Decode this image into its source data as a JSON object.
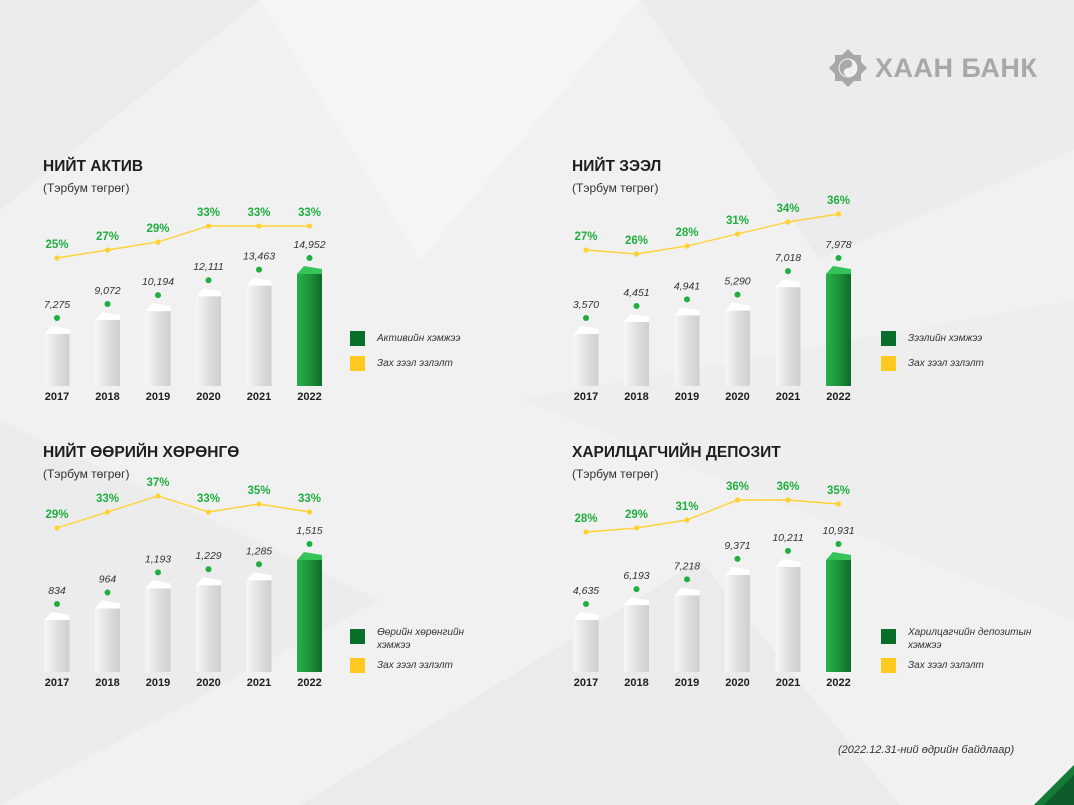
{
  "brand": {
    "name": "ХААН БАНК",
    "logo_color": "#a8a8a8"
  },
  "colors": {
    "accent_green": "#1fae3f",
    "line_yellow": "#ffd232",
    "bar_green": "#1d9a3a",
    "bar_gray": "#e8e8e8",
    "legend_green": "#0a6e2b",
    "legend_yellow": "#ffc91f"
  },
  "footer": "(2022.12.31-ний өдрийн байдлаар)",
  "chart_data": [
    {
      "type": "bar",
      "title": "НИЙТ АКТИВ",
      "subtitle": "(Тэрбум төгрөг)",
      "categories": [
        "2017",
        "2018",
        "2019",
        "2020",
        "2021",
        "2022"
      ],
      "series": [
        {
          "name": "Активийн хэмжээ",
          "values": [
            7275,
            9072,
            10194,
            12111,
            13463,
            14952
          ],
          "labels": [
            "7,275",
            "9,072",
            "10,194",
            "12,111",
            "13,463",
            "14,952"
          ]
        },
        {
          "name": "Зах зээл эзлэлт",
          "values": [
            25,
            27,
            29,
            33,
            33,
            33
          ],
          "labels": [
            "25%",
            "27%",
            "29%",
            "33%",
            "33%",
            "33%"
          ]
        }
      ],
      "legend": [
        "Активийн хэмжээ",
        "Зах зээл эзлэлт"
      ],
      "legend_position": "right"
    },
    {
      "type": "bar",
      "title": "НИЙТ ЗЭЭЛ",
      "subtitle": "(Тэрбум төгрөг)",
      "categories": [
        "2017",
        "2018",
        "2019",
        "2020",
        "2021",
        "2022"
      ],
      "series": [
        {
          "name": "Зээлийн хэмжээ",
          "values": [
            3570,
            4451,
            4941,
            5290,
            7018,
            7978
          ],
          "labels": [
            "3,570",
            "4,451",
            "4,941",
            "5,290",
            "7,018",
            "7,978"
          ]
        },
        {
          "name": "Зах зээл эзлэлт",
          "values": [
            27,
            26,
            28,
            31,
            34,
            36
          ],
          "labels": [
            "27%",
            "26%",
            "28%",
            "31%",
            "34%",
            "36%"
          ]
        }
      ],
      "legend": [
        "Зээлийн хэмжээ",
        "Зах зээл эзлэлт"
      ],
      "legend_position": "right"
    },
    {
      "type": "bar",
      "title": "НИЙТ ӨӨРИЙН ХӨРӨНГӨ",
      "subtitle": "(Тэрбум төгрөг)",
      "categories": [
        "2017",
        "2018",
        "2019",
        "2020",
        "2021",
        "2022"
      ],
      "series": [
        {
          "name": "Өөрийн хөрөнгийн хэмжээ",
          "values": [
            834,
            964,
            1193,
            1229,
            1285,
            1515
          ],
          "labels": [
            "834",
            "964",
            "1,193",
            "1,229",
            "1,285",
            "1,515"
          ]
        },
        {
          "name": "Зах зээл эзлэлт",
          "values": [
            29,
            33,
            37,
            33,
            35,
            33
          ],
          "labels": [
            "29%",
            "33%",
            "37%",
            "33%",
            "35%",
            "33%"
          ]
        }
      ],
      "legend": [
        "Өөрийн хөрөнгийн хэмжээ",
        "Зах зээл эзлэлт"
      ],
      "legend_position": "right"
    },
    {
      "type": "bar",
      "title": "ХАРИЛЦАГЧИЙН ДЕПОЗИТ",
      "subtitle": "(Тэрбум төгрөг)",
      "categories": [
        "2017",
        "2018",
        "2019",
        "2020",
        "2021",
        "2022"
      ],
      "series": [
        {
          "name": "Харилцагчийн депозитын хэмжээ",
          "values": [
            4635,
            6193,
            7218,
            9371,
            10211,
            10931
          ],
          "labels": [
            "4,635",
            "6,193",
            "7,218",
            "9,371",
            "10,211",
            "10,931"
          ]
        },
        {
          "name": "Зах зээл эзлэлт",
          "values": [
            28,
            29,
            31,
            36,
            36,
            35
          ],
          "labels": [
            "28%",
            "29%",
            "31%",
            "36%",
            "36%",
            "35%"
          ]
        }
      ],
      "legend": [
        "Харилцагчийн депозитын хэмжээ",
        "Зах зээл эзлэлт"
      ],
      "legend_position": "right"
    }
  ]
}
